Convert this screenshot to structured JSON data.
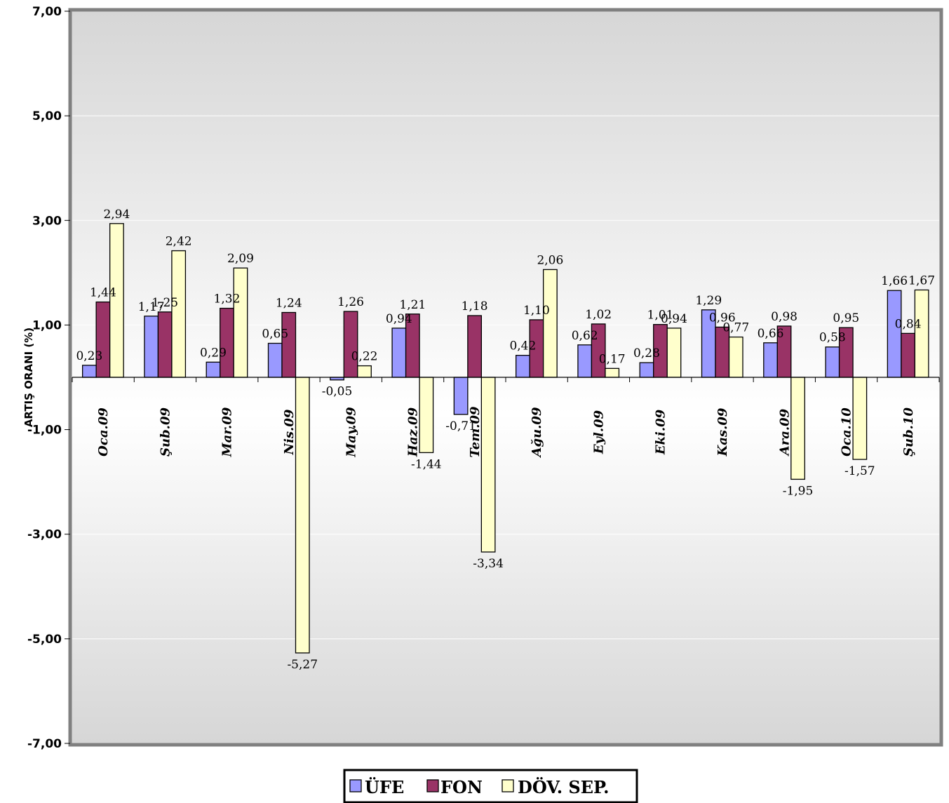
{
  "chart_data": {
    "type": "bar",
    "title": "",
    "xlabel": "",
    "ylabel": "ARTIŞ ORANI (%)",
    "ylim": [
      -7,
      7
    ],
    "yticks": [
      7,
      5,
      3,
      1,
      -1,
      -3,
      -5,
      -7
    ],
    "ytick_labels": [
      "7,00",
      "5,00",
      "3,00",
      "1,00",
      "-1,00",
      "-3,00",
      "-5,00",
      "-7,00"
    ],
    "grid": true,
    "legend_position": "bottom",
    "categories": [
      "Oca.09",
      "Şub.09",
      "Mar.09",
      "Nis.09",
      "May.09",
      "Haz.09",
      "Tem.09",
      "Ağu.09",
      "Eyl.09",
      "Eki.09",
      "Kas.09",
      "Ara.09",
      "Oca.10",
      "Şub.10"
    ],
    "series": [
      {
        "name": "ÜFE",
        "color": "#9999ff",
        "values": [
          0.23,
          1.17,
          0.29,
          0.65,
          -0.05,
          0.94,
          -0.71,
          0.42,
          0.62,
          0.28,
          1.29,
          0.66,
          0.58,
          1.66
        ],
        "labels": [
          "0,23",
          "1,17",
          "0,29",
          "0,65",
          "-0,05",
          "0,94",
          "-0,71",
          "0,42",
          "0,62",
          "0,28",
          "1,29",
          "0,66",
          "0,58",
          "1,66"
        ]
      },
      {
        "name": "FON",
        "color": "#993366",
        "values": [
          1.44,
          1.25,
          1.32,
          1.24,
          1.26,
          1.21,
          1.18,
          1.1,
          1.02,
          1.01,
          0.96,
          0.98,
          0.95,
          0.84
        ],
        "labels": [
          "1,44",
          "1,25",
          "1,32",
          "1,24",
          "1,26",
          "1,21",
          "1,18",
          "1,10",
          "1,02",
          "1,01",
          "0,96",
          "0,98",
          "0,95",
          "0,84"
        ]
      },
      {
        "name": "DÖV. SEP.",
        "color": "#ffffcc",
        "values": [
          2.94,
          2.42,
          2.09,
          -5.27,
          0.22,
          -1.44,
          -3.34,
          2.06,
          0.17,
          0.94,
          0.77,
          -1.95,
          -1.57,
          1.67
        ],
        "labels": [
          "2,94",
          "2,42",
          "2,09",
          "-5,27",
          "0,22",
          "-1,44",
          "-3,34",
          "2,06",
          "0,17",
          "0,94",
          "0,77",
          "-1,95",
          "-1,57",
          "1,67"
        ]
      }
    ]
  }
}
